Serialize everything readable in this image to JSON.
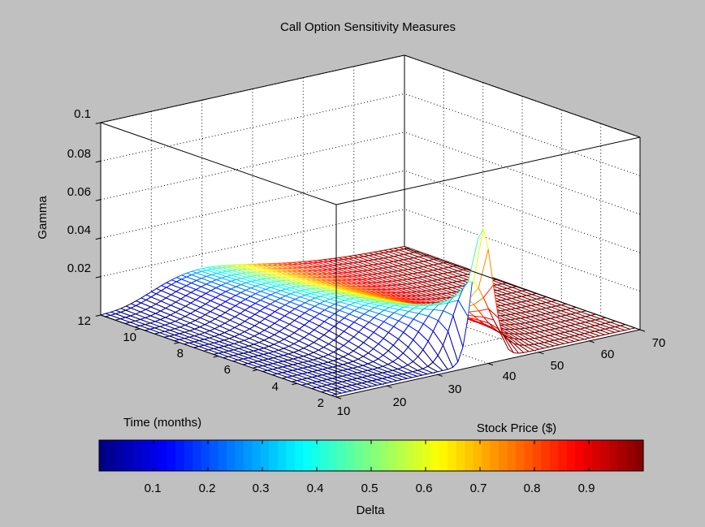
{
  "figure": {
    "background": "#c0c0c0"
  },
  "chart_data": {
    "type": "surface",
    "title": "Call Option Sensitivity Measures",
    "xlabel": "Stock Price ($)",
    "ylabel": "Time (months)",
    "zlabel": "Gamma",
    "color_label": "Delta",
    "colormap": "jet",
    "xlim": [
      10,
      70
    ],
    "ylim": [
      0,
      12
    ],
    "zlim": [
      0,
      0.1
    ],
    "x_ticks": [
      "10",
      "20",
      "30",
      "40",
      "50",
      "60",
      "70"
    ],
    "y_ticks": [
      "2",
      "4",
      "6",
      "8",
      "10",
      "12"
    ],
    "z_ticks": [
      "0.02",
      "0.04",
      "0.06",
      "0.08",
      "0.1"
    ],
    "colorbar_ticks": [
      "0.1",
      "0.2",
      "0.3",
      "0.4",
      "0.5",
      "0.6",
      "0.7",
      "0.8",
      "0.9"
    ],
    "colorbar_range": [
      0,
      1
    ],
    "grid": true,
    "surface_shape": {
      "strike": 40,
      "peak_gamma_near_expiry": 0.069,
      "gamma_plateau_at_12_months": 0.045,
      "time_samples_months": [
        0.25,
        0.75,
        1.25,
        1.75,
        2.25,
        2.75,
        3.25,
        3.75,
        4.25,
        4.75,
        5.25,
        5.75,
        6.25,
        6.75,
        7.25,
        7.75,
        8.25,
        8.75,
        9.25,
        9.75,
        10.25,
        10.75,
        11.25,
        11.75,
        12.0
      ],
      "price_step": 1
    }
  }
}
